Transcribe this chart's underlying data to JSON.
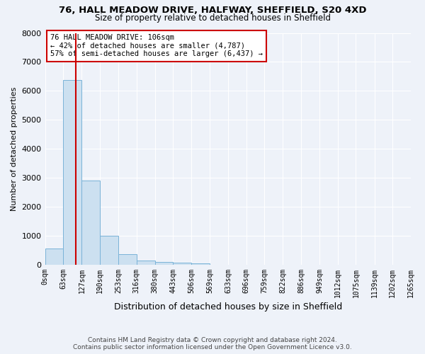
{
  "title1": "76, HALL MEADOW DRIVE, HALFWAY, SHEFFIELD, S20 4XD",
  "title2": "Size of property relative to detached houses in Sheffield",
  "xlabel": "Distribution of detached houses by size in Sheffield",
  "ylabel": "Number of detached properties",
  "footer1": "Contains HM Land Registry data © Crown copyright and database right 2024.",
  "footer2": "Contains public sector information licensed under the Open Government Licence v3.0.",
  "annotation_line1": "76 HALL MEADOW DRIVE: 106sqm",
  "annotation_line2": "← 42% of detached houses are smaller (4,787)",
  "annotation_line3": "57% of semi-detached houses are larger (6,437) →",
  "property_size": 106,
  "bar_edges": [
    0,
    63,
    127,
    190,
    253,
    316,
    380,
    443,
    506,
    569,
    633,
    696,
    759,
    822,
    886,
    949,
    1012,
    1075,
    1139,
    1202,
    1265
  ],
  "bar_heights": [
    570,
    6380,
    2900,
    1000,
    370,
    155,
    110,
    70,
    45,
    0,
    0,
    0,
    0,
    0,
    0,
    0,
    0,
    0,
    0,
    0
  ],
  "bar_color": "#cce0f0",
  "bar_edge_color": "#7ab3d8",
  "vline_color": "#cc0000",
  "vline_x": 106,
  "annotation_box_color": "#cc0000",
  "ylim": [
    0,
    8000
  ],
  "xlim": [
    0,
    1265
  ],
  "tick_labels": [
    "0sqm",
    "63sqm",
    "127sqm",
    "190sqm",
    "253sqm",
    "316sqm",
    "380sqm",
    "443sqm",
    "506sqm",
    "569sqm",
    "633sqm",
    "696sqm",
    "759sqm",
    "822sqm",
    "886sqm",
    "949sqm",
    "1012sqm",
    "1075sqm",
    "1139sqm",
    "1202sqm",
    "1265sqm"
  ],
  "ytick_labels": [
    "0",
    "1000",
    "2000",
    "3000",
    "4000",
    "5000",
    "6000",
    "7000",
    "8000"
  ],
  "ytick_values": [
    0,
    1000,
    2000,
    3000,
    4000,
    5000,
    6000,
    7000,
    8000
  ],
  "background_color": "#eef2f9",
  "grid_color": "#ffffff",
  "title1_fontsize": 9.5,
  "title2_fontsize": 8.5,
  "xlabel_fontsize": 9,
  "ylabel_fontsize": 8,
  "tick_fontsize": 7,
  "ytick_fontsize": 8,
  "footer_fontsize": 6.5,
  "annotation_fontsize": 7.5
}
